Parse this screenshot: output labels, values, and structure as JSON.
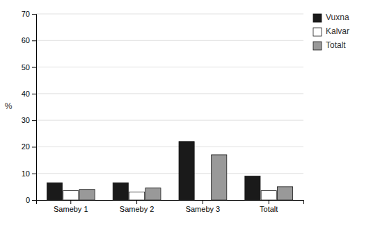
{
  "chart_data": {
    "type": "bar",
    "categories": [
      "Sameby 1",
      "Sameby 2",
      "Sameby 3",
      "Totalt"
    ],
    "series": [
      {
        "name": "Vuxna",
        "color": "#1a1a1a",
        "values": [
          6.5,
          6.5,
          22.0,
          9.0
        ]
      },
      {
        "name": "Kalvar",
        "color": "#ffffff",
        "values": [
          3.5,
          3.0,
          0.0,
          3.5
        ]
      },
      {
        "name": "Totalt",
        "color": "#999999",
        "values": [
          4.0,
          4.5,
          17.0,
          5.0
        ]
      }
    ],
    "ylabel": "%",
    "ylim": [
      0,
      70
    ],
    "yticks": [
      0,
      10,
      20,
      30,
      40,
      50,
      60,
      70
    ],
    "grid": true,
    "legend": "upper right"
  }
}
